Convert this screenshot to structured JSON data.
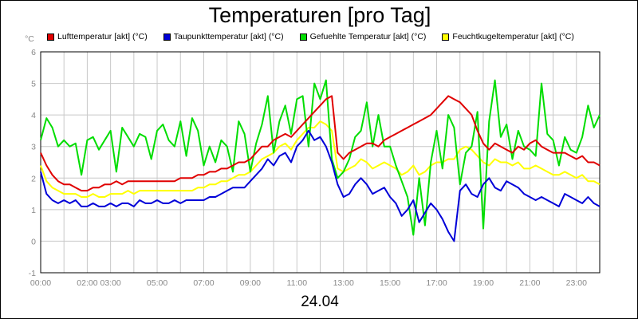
{
  "chart_data": {
    "type": "line",
    "title": "Temperaturen [pro Tag]",
    "xlabel": "24.04",
    "ylabel": "°C",
    "grid": true,
    "legend_position": "top",
    "ylim": [
      -1,
      6
    ],
    "xlim_hours": [
      0,
      24
    ],
    "y_ticks": [
      "-1",
      "0",
      "1",
      "2",
      "3",
      "4",
      "5",
      "6"
    ],
    "x_ticks": [
      {
        "h": 0,
        "label": "00:00"
      },
      {
        "h": 2,
        "label": "02:00"
      },
      {
        "h": 3,
        "label": "03:00"
      },
      {
        "h": 5,
        "label": "05:00"
      },
      {
        "h": 7,
        "label": "07:00"
      },
      {
        "h": 9,
        "label": "09:00"
      },
      {
        "h": 11,
        "label": "11:00"
      },
      {
        "h": 13,
        "label": "13:00"
      },
      {
        "h": 15,
        "label": "15:00"
      },
      {
        "h": 17,
        "label": "17:00"
      },
      {
        "h": 19,
        "label": "19:00"
      },
      {
        "h": 21,
        "label": "21:00"
      },
      {
        "h": 23,
        "label": "23:00"
      }
    ],
    "series": [
      {
        "name": "Lufttemperatur [akt] (°C)",
        "color": "#e00000",
        "x": [
          0,
          0.25,
          0.5,
          0.75,
          1,
          1.25,
          1.5,
          1.75,
          2,
          2.25,
          2.5,
          2.75,
          3,
          3.25,
          3.5,
          3.75,
          4,
          4.25,
          4.5,
          4.75,
          5,
          5.25,
          5.5,
          5.75,
          6,
          6.25,
          6.5,
          6.75,
          7,
          7.25,
          7.5,
          7.75,
          8,
          8.25,
          8.5,
          8.75,
          9,
          9.25,
          9.5,
          9.75,
          10,
          10.25,
          10.5,
          10.75,
          11,
          11.25,
          11.5,
          11.75,
          12,
          12.25,
          12.5,
          12.75,
          13,
          13.25,
          13.5,
          13.75,
          14,
          14.25,
          14.5,
          14.75,
          15,
          15.25,
          15.5,
          15.75,
          16,
          16.25,
          16.5,
          16.75,
          17,
          17.25,
          17.5,
          17.75,
          18,
          18.25,
          18.5,
          18.75,
          19,
          19.25,
          19.5,
          19.75,
          20,
          20.25,
          20.5,
          20.75,
          21,
          21.25,
          21.5,
          21.75,
          22,
          22.25,
          22.5,
          22.75,
          23,
          23.25,
          23.5,
          23.75,
          24
        ],
        "y": [
          2.8,
          2.4,
          2.1,
          1.9,
          1.8,
          1.8,
          1.7,
          1.6,
          1.6,
          1.7,
          1.7,
          1.8,
          1.8,
          1.9,
          1.8,
          1.9,
          1.9,
          1.9,
          1.9,
          1.9,
          1.9,
          1.9,
          1.9,
          1.9,
          2.0,
          2.0,
          2.0,
          2.1,
          2.1,
          2.2,
          2.2,
          2.3,
          2.3,
          2.4,
          2.5,
          2.5,
          2.6,
          2.8,
          3.0,
          3.0,
          3.2,
          3.3,
          3.4,
          3.3,
          3.5,
          3.7,
          3.9,
          4.1,
          4.3,
          4.5,
          4.6,
          2.8,
          2.6,
          2.8,
          2.9,
          3.0,
          3.1,
          3.1,
          3.0,
          3.2,
          3.3,
          3.4,
          3.5,
          3.6,
          3.7,
          3.8,
          3.9,
          4.0,
          4.2,
          4.4,
          4.6,
          4.5,
          4.4,
          4.2,
          4.0,
          3.5,
          3.1,
          2.9,
          3.1,
          3.0,
          2.9,
          2.8,
          3.0,
          2.9,
          3.1,
          3.2,
          3.0,
          2.9,
          2.8,
          2.8,
          2.8,
          2.7,
          2.6,
          2.7,
          2.5,
          2.5,
          2.4
        ]
      },
      {
        "name": "Taupunkttemperatur [akt] (°C)",
        "color": "#0000d8",
        "x": [
          0,
          0.25,
          0.5,
          0.75,
          1,
          1.25,
          1.5,
          1.75,
          2,
          2.25,
          2.5,
          2.75,
          3,
          3.25,
          3.5,
          3.75,
          4,
          4.25,
          4.5,
          4.75,
          5,
          5.25,
          5.5,
          5.75,
          6,
          6.25,
          6.5,
          6.75,
          7,
          7.25,
          7.5,
          7.75,
          8,
          8.25,
          8.5,
          8.75,
          9,
          9.25,
          9.5,
          9.75,
          10,
          10.25,
          10.5,
          10.75,
          11,
          11.25,
          11.5,
          11.75,
          12,
          12.25,
          12.5,
          12.75,
          13,
          13.25,
          13.5,
          13.75,
          14,
          14.25,
          14.5,
          14.75,
          15,
          15.25,
          15.5,
          15.75,
          16,
          16.25,
          16.5,
          16.75,
          17,
          17.25,
          17.5,
          17.75,
          18,
          18.25,
          18.5,
          18.75,
          19,
          19.25,
          19.5,
          19.75,
          20,
          20.25,
          20.5,
          20.75,
          21,
          21.25,
          21.5,
          21.75,
          22,
          22.25,
          22.5,
          22.75,
          23,
          23.25,
          23.5,
          23.75,
          24
        ],
        "y": [
          2.2,
          1.5,
          1.3,
          1.2,
          1.3,
          1.2,
          1.3,
          1.1,
          1.1,
          1.2,
          1.1,
          1.1,
          1.2,
          1.1,
          1.2,
          1.2,
          1.1,
          1.3,
          1.2,
          1.2,
          1.3,
          1.2,
          1.2,
          1.3,
          1.2,
          1.3,
          1.3,
          1.3,
          1.3,
          1.4,
          1.4,
          1.5,
          1.6,
          1.7,
          1.7,
          1.7,
          1.9,
          2.1,
          2.3,
          2.6,
          2.4,
          2.7,
          2.8,
          2.5,
          3.0,
          3.2,
          3.5,
          3.2,
          3.3,
          3.0,
          2.5,
          1.8,
          1.4,
          1.5,
          1.8,
          2.0,
          1.8,
          1.5,
          1.6,
          1.7,
          1.4,
          1.2,
          0.8,
          1.0,
          1.3,
          0.6,
          0.9,
          1.2,
          1.0,
          0.7,
          0.3,
          0.0,
          1.6,
          1.8,
          1.5,
          1.4,
          1.8,
          2.0,
          1.7,
          1.6,
          1.9,
          1.8,
          1.7,
          1.5,
          1.4,
          1.3,
          1.4,
          1.3,
          1.2,
          1.1,
          1.5,
          1.4,
          1.3,
          1.2,
          1.4,
          1.2,
          1.1
        ]
      },
      {
        "name": "Gefuehlte Temperatur [akt] (°C)",
        "color": "#00dd00",
        "x": [
          0,
          0.25,
          0.5,
          0.75,
          1,
          1.25,
          1.5,
          1.75,
          2,
          2.25,
          2.5,
          2.75,
          3,
          3.25,
          3.5,
          3.75,
          4,
          4.25,
          4.5,
          4.75,
          5,
          5.25,
          5.5,
          5.75,
          6,
          6.25,
          6.5,
          6.75,
          7,
          7.25,
          7.5,
          7.75,
          8,
          8.25,
          8.5,
          8.75,
          9,
          9.25,
          9.5,
          9.75,
          10,
          10.25,
          10.5,
          10.75,
          11,
          11.25,
          11.5,
          11.75,
          12,
          12.25,
          12.5,
          12.75,
          13,
          13.25,
          13.5,
          13.75,
          14,
          14.25,
          14.5,
          14.75,
          15,
          15.25,
          15.5,
          15.75,
          16,
          16.25,
          16.5,
          16.75,
          17,
          17.25,
          17.5,
          17.75,
          18,
          18.25,
          18.5,
          18.75,
          19,
          19.25,
          19.5,
          19.75,
          20,
          20.25,
          20.5,
          20.75,
          21,
          21.25,
          21.5,
          21.75,
          22,
          22.25,
          22.5,
          22.75,
          23,
          23.25,
          23.5,
          23.75,
          24
        ],
        "y": [
          3.2,
          3.9,
          3.6,
          3.0,
          3.2,
          3.0,
          3.1,
          2.1,
          3.2,
          3.3,
          2.9,
          3.2,
          3.5,
          2.2,
          3.6,
          3.3,
          3.0,
          3.4,
          3.3,
          2.6,
          3.5,
          3.7,
          3.2,
          3.0,
          3.8,
          2.7,
          3.9,
          3.5,
          2.4,
          3.0,
          2.5,
          3.2,
          3.0,
          2.2,
          3.8,
          3.4,
          2.2,
          3.1,
          3.7,
          4.6,
          2.8,
          3.8,
          4.3,
          3.4,
          4.5,
          4.6,
          3.0,
          5.0,
          4.5,
          5.1,
          2.6,
          2.0,
          2.2,
          2.6,
          3.3,
          3.5,
          4.4,
          3.0,
          4.0,
          3.0,
          3.0,
          2.4,
          1.9,
          1.4,
          0.2,
          2.0,
          0.5,
          2.5,
          3.5,
          2.3,
          4.0,
          3.6,
          1.8,
          2.8,
          3.0,
          4.1,
          0.4,
          3.8,
          5.1,
          3.3,
          3.7,
          2.6,
          3.5,
          3.0,
          2.9,
          2.7,
          5.0,
          3.4,
          3.2,
          2.4,
          3.3,
          2.9,
          2.8,
          3.3,
          4.3,
          3.6,
          4.0
        ]
      },
      {
        "name": "Feuchtkugeltemperatur [akt] (°C)",
        "color": "#ffff00",
        "x": [
          0,
          0.25,
          0.5,
          0.75,
          1,
          1.25,
          1.5,
          1.75,
          2,
          2.25,
          2.5,
          2.75,
          3,
          3.25,
          3.5,
          3.75,
          4,
          4.25,
          4.5,
          4.75,
          5,
          5.25,
          5.5,
          5.75,
          6,
          6.25,
          6.5,
          6.75,
          7,
          7.25,
          7.5,
          7.75,
          8,
          8.25,
          8.5,
          8.75,
          9,
          9.25,
          9.5,
          9.75,
          10,
          10.25,
          10.5,
          10.75,
          11,
          11.25,
          11.5,
          11.75,
          12,
          12.25,
          12.5,
          12.75,
          13,
          13.25,
          13.5,
          13.75,
          14,
          14.25,
          14.5,
          14.75,
          15,
          15.25,
          15.5,
          15.75,
          16,
          16.25,
          16.5,
          16.75,
          17,
          17.25,
          17.5,
          17.75,
          18,
          18.25,
          18.5,
          18.75,
          19,
          19.25,
          19.5,
          19.75,
          20,
          20.25,
          20.5,
          20.75,
          21,
          21.25,
          21.5,
          21.75,
          22,
          22.25,
          22.5,
          22.75,
          23,
          23.25,
          23.5,
          23.75,
          24
        ],
        "y": [
          2.4,
          1.9,
          1.7,
          1.6,
          1.5,
          1.5,
          1.5,
          1.4,
          1.4,
          1.5,
          1.4,
          1.4,
          1.5,
          1.5,
          1.5,
          1.6,
          1.5,
          1.6,
          1.6,
          1.6,
          1.6,
          1.6,
          1.6,
          1.6,
          1.6,
          1.6,
          1.6,
          1.7,
          1.7,
          1.8,
          1.8,
          1.9,
          1.9,
          2.0,
          2.1,
          2.1,
          2.2,
          2.4,
          2.6,
          2.7,
          2.8,
          3.0,
          3.1,
          2.9,
          3.2,
          3.4,
          3.6,
          3.6,
          3.8,
          3.7,
          3.5,
          2.3,
          2.2,
          2.3,
          2.4,
          2.6,
          2.5,
          2.3,
          2.4,
          2.5,
          2.4,
          2.3,
          2.1,
          2.2,
          2.4,
          2.1,
          2.2,
          2.4,
          2.5,
          2.5,
          2.6,
          2.6,
          2.9,
          3.0,
          2.9,
          2.7,
          2.5,
          2.4,
          2.6,
          2.5,
          2.5,
          2.4,
          2.5,
          2.3,
          2.3,
          2.4,
          2.3,
          2.2,
          2.1,
          2.1,
          2.2,
          2.1,
          2.0,
          2.1,
          1.9,
          1.9,
          1.8
        ]
      }
    ]
  }
}
